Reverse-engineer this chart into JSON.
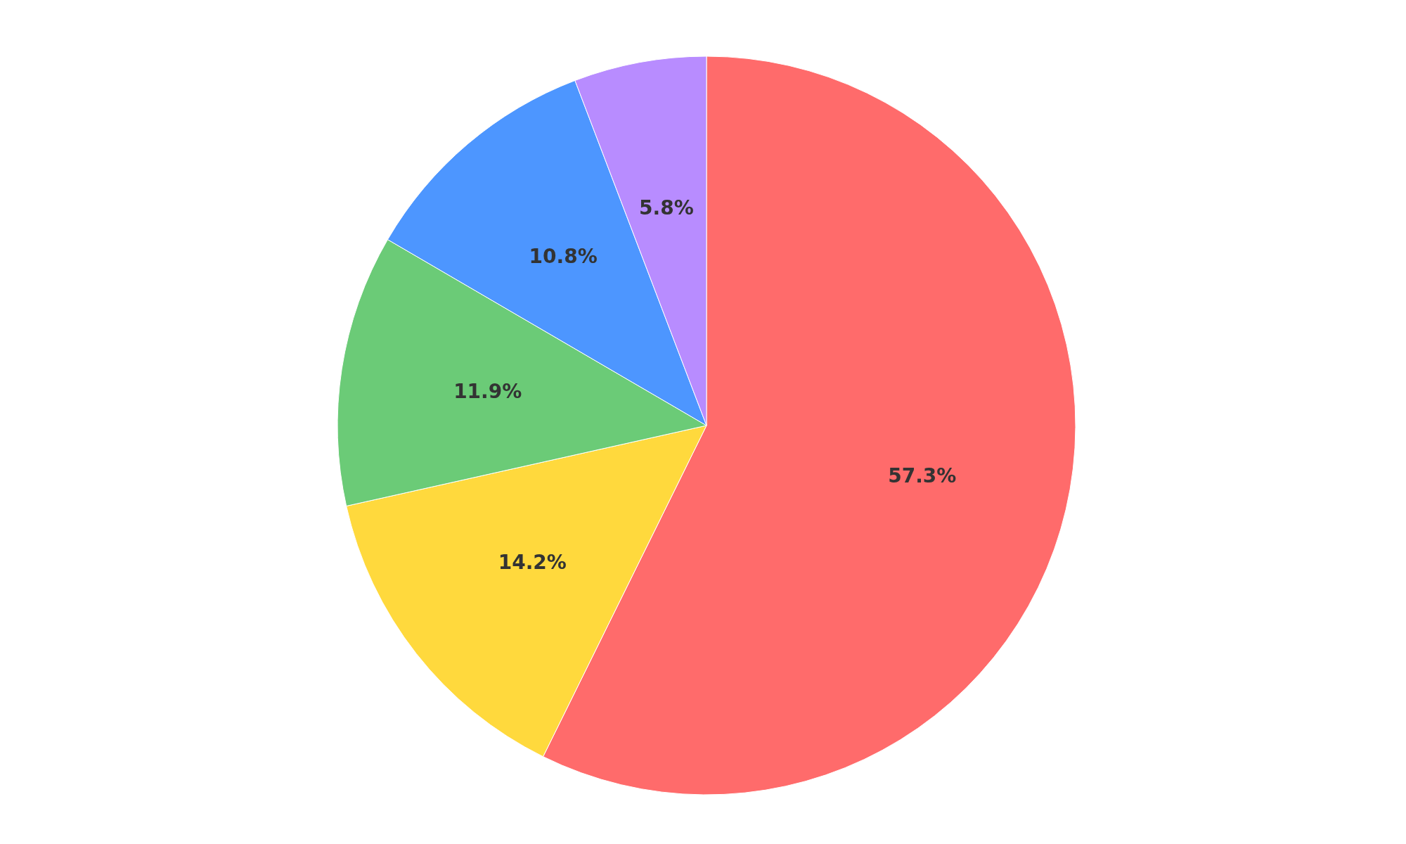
{
  "chart_data": {
    "type": "pie",
    "categories": [
      null,
      null,
      null,
      null,
      null
    ],
    "values": [
      57.3,
      14.2,
      11.9,
      10.8,
      5.8
    ],
    "colors": [
      "#ff6b6b",
      "#ffd93d",
      "#6bcb77",
      "#4d96ff",
      "#b88cff"
    ],
    "value_labels": [
      "57.3%",
      "14.2%",
      "11.9%",
      "10.8%",
      "5.8%"
    ]
  }
}
